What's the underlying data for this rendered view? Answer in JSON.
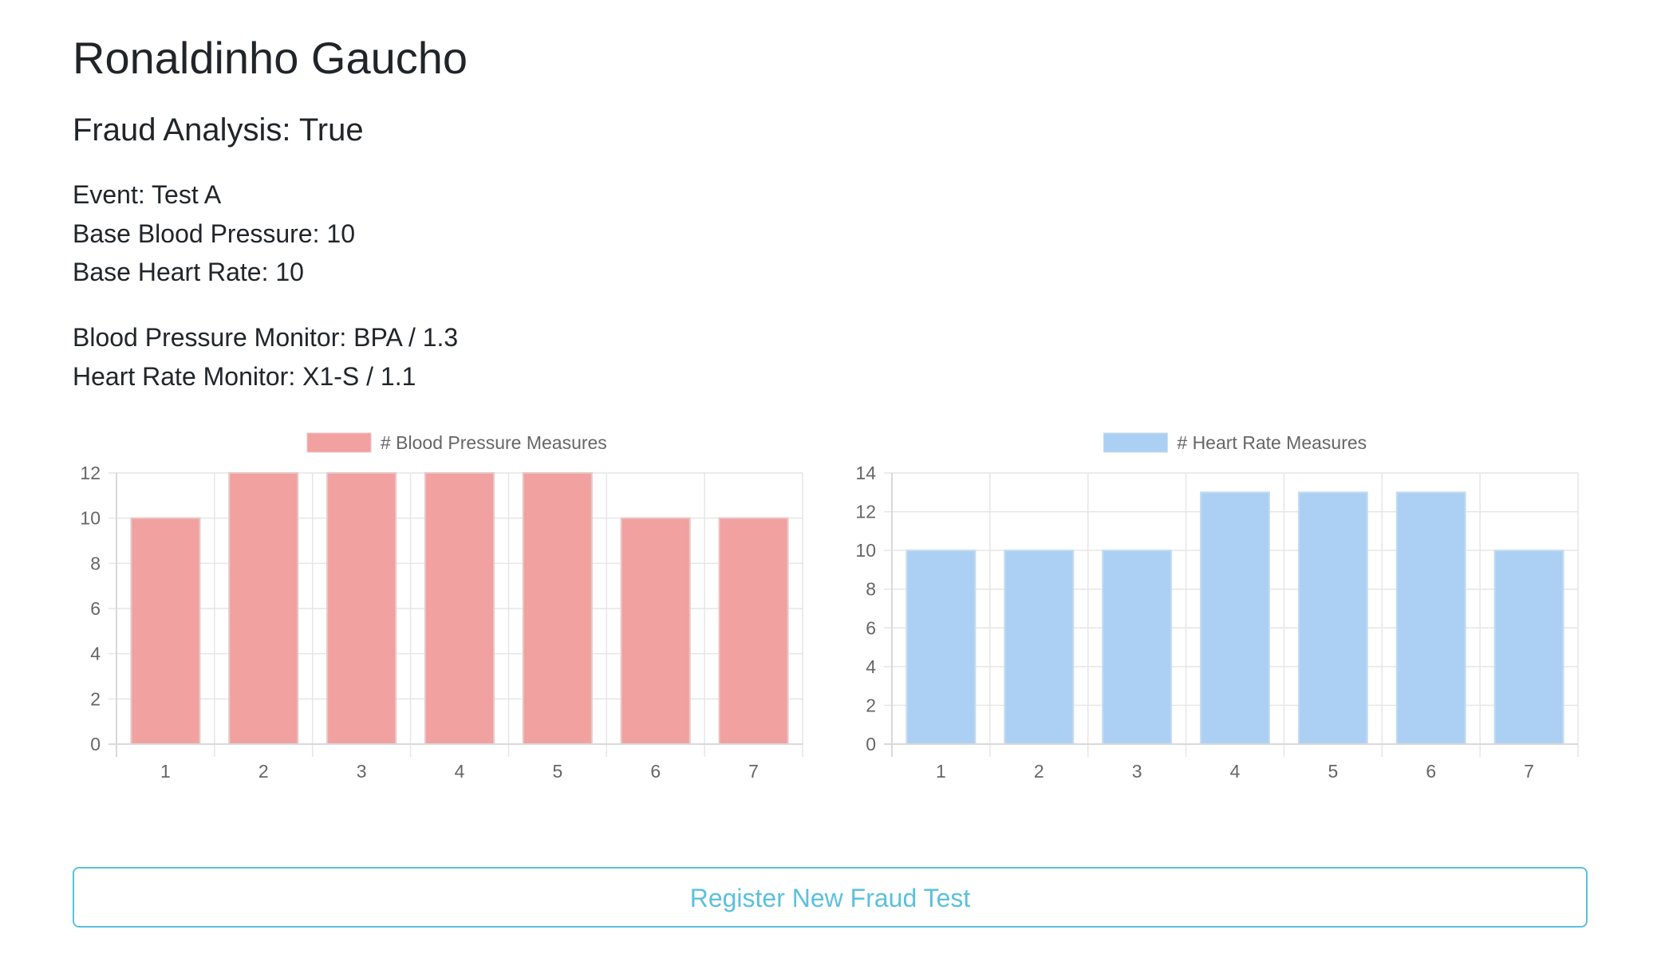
{
  "athlete": {
    "name": "Ronaldinho Gaucho"
  },
  "analysis": {
    "heading": "Fraud Analysis: True"
  },
  "event_info": {
    "event": "Event: Test A",
    "base_blood_pressure": "Base Blood Pressure: 10",
    "base_heart_rate": "Base Heart Rate: 10"
  },
  "monitors": {
    "blood_pressure_monitor": "Blood Pressure Monitor: BPA / 1.3",
    "heart_rate_monitor": "Heart Rate Monitor: X1-S / 1.1"
  },
  "chart_data": [
    {
      "type": "bar",
      "categories": [
        "1",
        "2",
        "3",
        "4",
        "5",
        "6",
        "7"
      ],
      "series": [
        {
          "name": "# Blood Pressure Measures",
          "values": [
            10,
            12,
            12,
            12,
            12,
            10,
            10
          ]
        }
      ],
      "title": "",
      "xlabel": "",
      "ylabel": "",
      "ylim": [
        0,
        12
      ],
      "yticks": [
        0,
        2,
        4,
        6,
        8,
        10,
        12
      ],
      "grid": true,
      "legend": "top-center",
      "fill_color": "#f1a1a0",
      "border_color": "#e9c6c6"
    },
    {
      "type": "bar",
      "categories": [
        "1",
        "2",
        "3",
        "4",
        "5",
        "6",
        "7"
      ],
      "series": [
        {
          "name": "# Heart Rate Measures",
          "values": [
            10,
            10,
            10,
            13,
            13,
            13,
            10
          ]
        }
      ],
      "title": "",
      "xlabel": "",
      "ylabel": "",
      "ylim": [
        0,
        14
      ],
      "yticks": [
        0,
        2,
        4,
        6,
        8,
        10,
        12,
        14
      ],
      "grid": true,
      "legend": "top-center",
      "fill_color": "#acd0f3",
      "border_color": "#c6dcf0"
    }
  ],
  "actions": {
    "register_label": "Register New Fraud Test"
  }
}
